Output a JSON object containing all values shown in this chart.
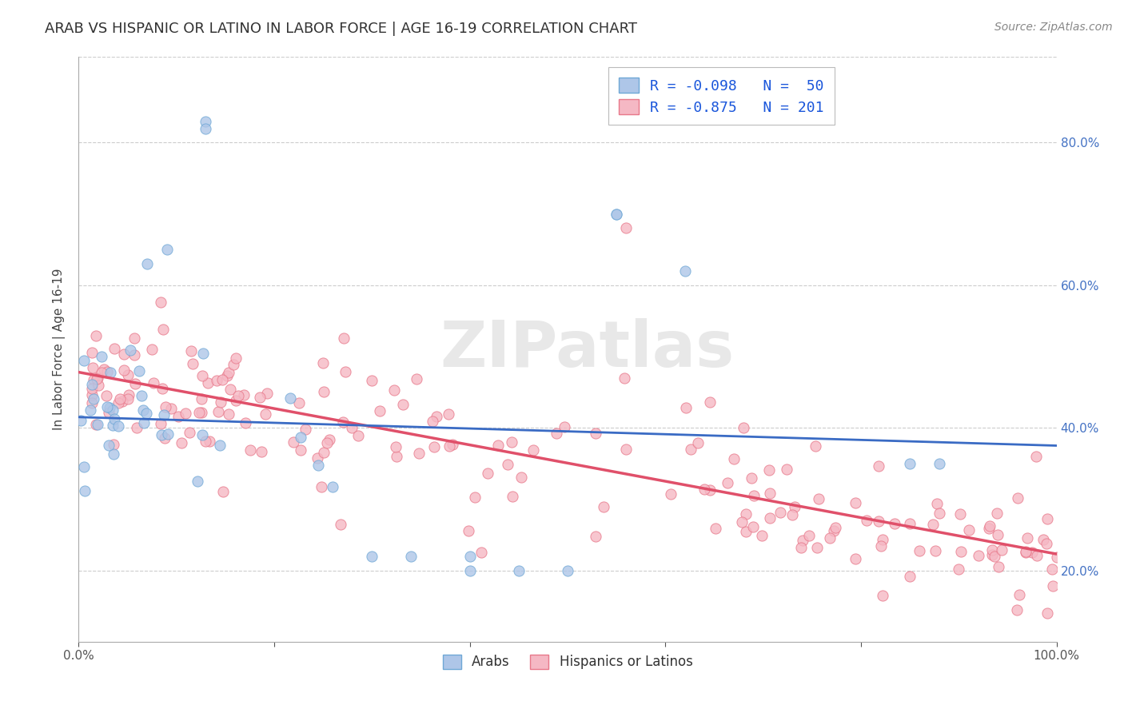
{
  "title": "ARAB VS HISPANIC OR LATINO IN LABOR FORCE | AGE 16-19 CORRELATION CHART",
  "source_text": "Source: ZipAtlas.com",
  "ylabel": "In Labor Force | Age 16-19",
  "xlim": [
    0.0,
    1.0
  ],
  "ylim": [
    0.1,
    0.92
  ],
  "xtick_vals": [
    0.0,
    0.2,
    0.4,
    0.6,
    0.8,
    1.0
  ],
  "xtick_labels": [
    "0.0%",
    "",
    "",
    "",
    "",
    "100.0%"
  ],
  "ytick_vals": [
    0.2,
    0.4,
    0.6,
    0.8
  ],
  "ytick_labels": [
    "20.0%",
    "40.0%",
    "60.0%",
    "80.0%"
  ],
  "arab_color": "#aec6e8",
  "arab_edge_color": "#6fa8d6",
  "hispanic_color": "#f5b8c4",
  "hispanic_edge_color": "#e8788a",
  "legend_R_color": "#1a56db",
  "watermark_text": "ZIPatlas",
  "background_color": "#ffffff",
  "grid_color": "#cccccc",
  "arab_line_color": "#3a6bc4",
  "hispanic_line_color": "#e0506a",
  "title_fontsize": 13,
  "axis_label_fontsize": 11,
  "tick_fontsize": 11,
  "legend_fontsize": 13,
  "source_fontsize": 10,
  "right_tick_color": "#4472c4",
  "arab_line_intercept": 0.415,
  "arab_line_slope": -0.04,
  "hisp_line_intercept": 0.478,
  "hisp_line_slope": -0.255
}
